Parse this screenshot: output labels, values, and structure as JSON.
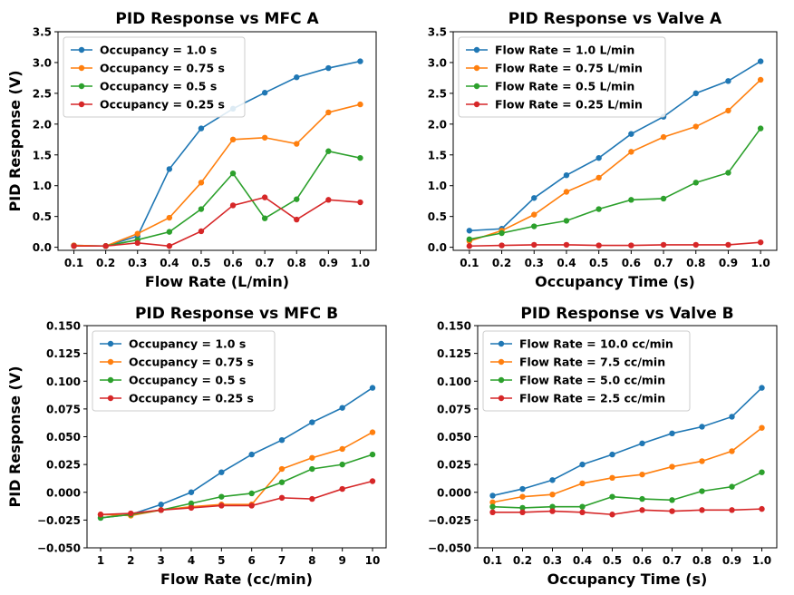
{
  "chart_data": [
    {
      "type": "line",
      "title": "PID Response vs MFC A",
      "xlabel": "Flow Rate (L/min)",
      "ylabel": "PID Response (V)",
      "x": [
        0.1,
        0.2,
        0.3,
        0.4,
        0.5,
        0.6,
        0.7,
        0.8,
        0.9,
        1.0
      ],
      "xticks": [
        "0.1",
        "0.2",
        "0.3",
        "0.4",
        "0.5",
        "0.6",
        "0.7",
        "0.8",
        "0.9",
        "1.0"
      ],
      "xlim": [
        0.05,
        1.05
      ],
      "ylim": [
        -0.05,
        3.5
      ],
      "yticks": [
        0.0,
        0.5,
        1.0,
        1.5,
        2.0,
        2.5,
        3.0,
        3.5
      ],
      "ytick_labels": [
        "0.0",
        "0.5",
        "1.0",
        "1.5",
        "2.0",
        "2.5",
        "3.0",
        "3.5"
      ],
      "legend": "top-left",
      "series": [
        {
          "name": "Occupancy = 1.0 s",
          "color": "#1f77b4",
          "values": [
            0.03,
            0.02,
            0.18,
            1.27,
            1.93,
            2.25,
            2.51,
            2.76,
            2.91,
            3.02
          ]
        },
        {
          "name": "Occupancy = 0.75 s",
          "color": "#ff7f0e",
          "values": [
            0.03,
            0.02,
            0.22,
            0.48,
            1.05,
            1.75,
            1.78,
            1.68,
            2.19,
            2.32
          ]
        },
        {
          "name": "Occupancy = 0.5 s",
          "color": "#2ca02c",
          "values": [
            0.02,
            0.02,
            0.12,
            0.25,
            0.62,
            1.2,
            0.47,
            0.78,
            1.56,
            1.45
          ]
        },
        {
          "name": "Occupancy = 0.25 s",
          "color": "#d62728",
          "values": [
            0.02,
            0.02,
            0.07,
            0.02,
            0.26,
            0.68,
            0.81,
            0.45,
            0.77,
            0.73
          ]
        }
      ]
    },
    {
      "type": "line",
      "title": "PID Response vs Valve A",
      "xlabel": "Occupancy Time (s)",
      "ylabel": "",
      "x": [
        0.1,
        0.2,
        0.3,
        0.4,
        0.5,
        0.6,
        0.7,
        0.8,
        0.9,
        1.0
      ],
      "xticks": [
        "0.1",
        "0.2",
        "0.3",
        "0.4",
        "0.5",
        "0.6",
        "0.7",
        "0.8",
        "0.9",
        "1.0"
      ],
      "xlim": [
        0.05,
        1.05
      ],
      "ylim": [
        -0.05,
        3.5
      ],
      "yticks": [
        0.0,
        0.5,
        1.0,
        1.5,
        2.0,
        2.5,
        3.0,
        3.5
      ],
      "ytick_labels": [
        "0.0",
        "0.5",
        "1.0",
        "1.5",
        "2.0",
        "2.5",
        "3.0",
        "3.5"
      ],
      "legend": "top-left",
      "series": [
        {
          "name": "Flow Rate = 1.0 L/min",
          "color": "#1f77b4",
          "values": [
            0.27,
            0.3,
            0.8,
            1.17,
            1.45,
            1.84,
            2.12,
            2.5,
            2.7,
            3.02
          ]
        },
        {
          "name": "Flow Rate = 0.75 L/min",
          "color": "#ff7f0e",
          "values": [
            0.1,
            0.27,
            0.53,
            0.9,
            1.13,
            1.55,
            1.79,
            1.96,
            2.22,
            2.72
          ]
        },
        {
          "name": "Flow Rate = 0.5 L/min",
          "color": "#2ca02c",
          "values": [
            0.13,
            0.23,
            0.34,
            0.43,
            0.62,
            0.77,
            0.79,
            1.05,
            1.21,
            1.93
          ]
        },
        {
          "name": "Flow Rate = 0.25 L/min",
          "color": "#d62728",
          "values": [
            0.02,
            0.03,
            0.04,
            0.04,
            0.03,
            0.03,
            0.04,
            0.04,
            0.04,
            0.08
          ]
        }
      ]
    },
    {
      "type": "line",
      "title": "PID Response vs MFC B",
      "xlabel": "Flow Rate (cc/min)",
      "ylabel": "PID Response (V)",
      "x": [
        1,
        2,
        3,
        4,
        5,
        6,
        7,
        8,
        9,
        10
      ],
      "xticks": [
        "1",
        "2",
        "3",
        "4",
        "5",
        "6",
        "7",
        "8",
        "9",
        "10"
      ],
      "xlim": [
        0.55,
        10.45
      ],
      "ylim": [
        -0.05,
        0.15
      ],
      "yticks": [
        -0.05,
        -0.025,
        0.0,
        0.025,
        0.05,
        0.075,
        0.1,
        0.125,
        0.15
      ],
      "ytick_labels": [
        "−0.050",
        "−0.025",
        "0.000",
        "0.025",
        "0.050",
        "0.075",
        "0.100",
        "0.125",
        "0.150"
      ],
      "legend": "top-left",
      "series": [
        {
          "name": "Occupancy = 1.0 s",
          "color": "#1f77b4",
          "values": [
            -0.023,
            -0.02,
            -0.011,
            0.0,
            0.018,
            0.034,
            0.047,
            0.063,
            0.076,
            0.094
          ]
        },
        {
          "name": "Occupancy = 0.75 s",
          "color": "#ff7f0e",
          "values": [
            -0.02,
            -0.021,
            -0.016,
            -0.013,
            -0.011,
            -0.011,
            0.021,
            0.031,
            0.039,
            0.054
          ]
        },
        {
          "name": "Occupancy = 0.5 s",
          "color": "#2ca02c",
          "values": [
            -0.023,
            -0.02,
            -0.016,
            -0.01,
            -0.004,
            -0.001,
            0.009,
            0.021,
            0.025,
            0.034
          ]
        },
        {
          "name": "Occupancy = 0.25 s",
          "color": "#d62728",
          "values": [
            -0.02,
            -0.019,
            -0.016,
            -0.014,
            -0.012,
            -0.012,
            -0.005,
            -0.006,
            0.003,
            0.01
          ]
        }
      ]
    },
    {
      "type": "line",
      "title": "PID Response vs Valve B",
      "xlabel": "Occupancy Time (s)",
      "ylabel": "",
      "x": [
        0.1,
        0.2,
        0.3,
        0.4,
        0.5,
        0.6,
        0.7,
        0.8,
        0.9,
        1.0
      ],
      "xticks": [
        "0.1",
        "0.2",
        "0.3",
        "0.4",
        "0.5",
        "0.6",
        "0.7",
        "0.8",
        "0.9",
        "1.0"
      ],
      "xlim": [
        0.05,
        1.05
      ],
      "ylim": [
        -0.05,
        0.15
      ],
      "yticks": [
        -0.05,
        -0.025,
        0.0,
        0.025,
        0.05,
        0.075,
        0.1,
        0.125,
        0.15
      ],
      "ytick_labels": [
        "−0.050",
        "−0.025",
        "0.000",
        "0.025",
        "0.050",
        "0.075",
        "0.100",
        "0.125",
        "0.150"
      ],
      "legend": "top-left",
      "series": [
        {
          "name": "Flow Rate = 10.0 cc/min",
          "color": "#1f77b4",
          "values": [
            -0.003,
            0.003,
            0.011,
            0.025,
            0.034,
            0.044,
            0.053,
            0.059,
            0.068,
            0.094
          ]
        },
        {
          "name": "Flow Rate = 7.5 cc/min",
          "color": "#ff7f0e",
          "values": [
            -0.009,
            -0.004,
            -0.002,
            0.008,
            0.013,
            0.016,
            0.023,
            0.028,
            0.037,
            0.058
          ]
        },
        {
          "name": "Flow Rate = 5.0 cc/min",
          "color": "#2ca02c",
          "values": [
            -0.013,
            -0.014,
            -0.013,
            -0.013,
            -0.004,
            -0.006,
            -0.007,
            0.001,
            0.005,
            0.018
          ]
        },
        {
          "name": "Flow Rate = 2.5 cc/min",
          "color": "#d62728",
          "values": [
            -0.018,
            -0.018,
            -0.017,
            -0.018,
            -0.02,
            -0.016,
            -0.017,
            -0.016,
            -0.016,
            -0.015
          ]
        }
      ]
    }
  ]
}
